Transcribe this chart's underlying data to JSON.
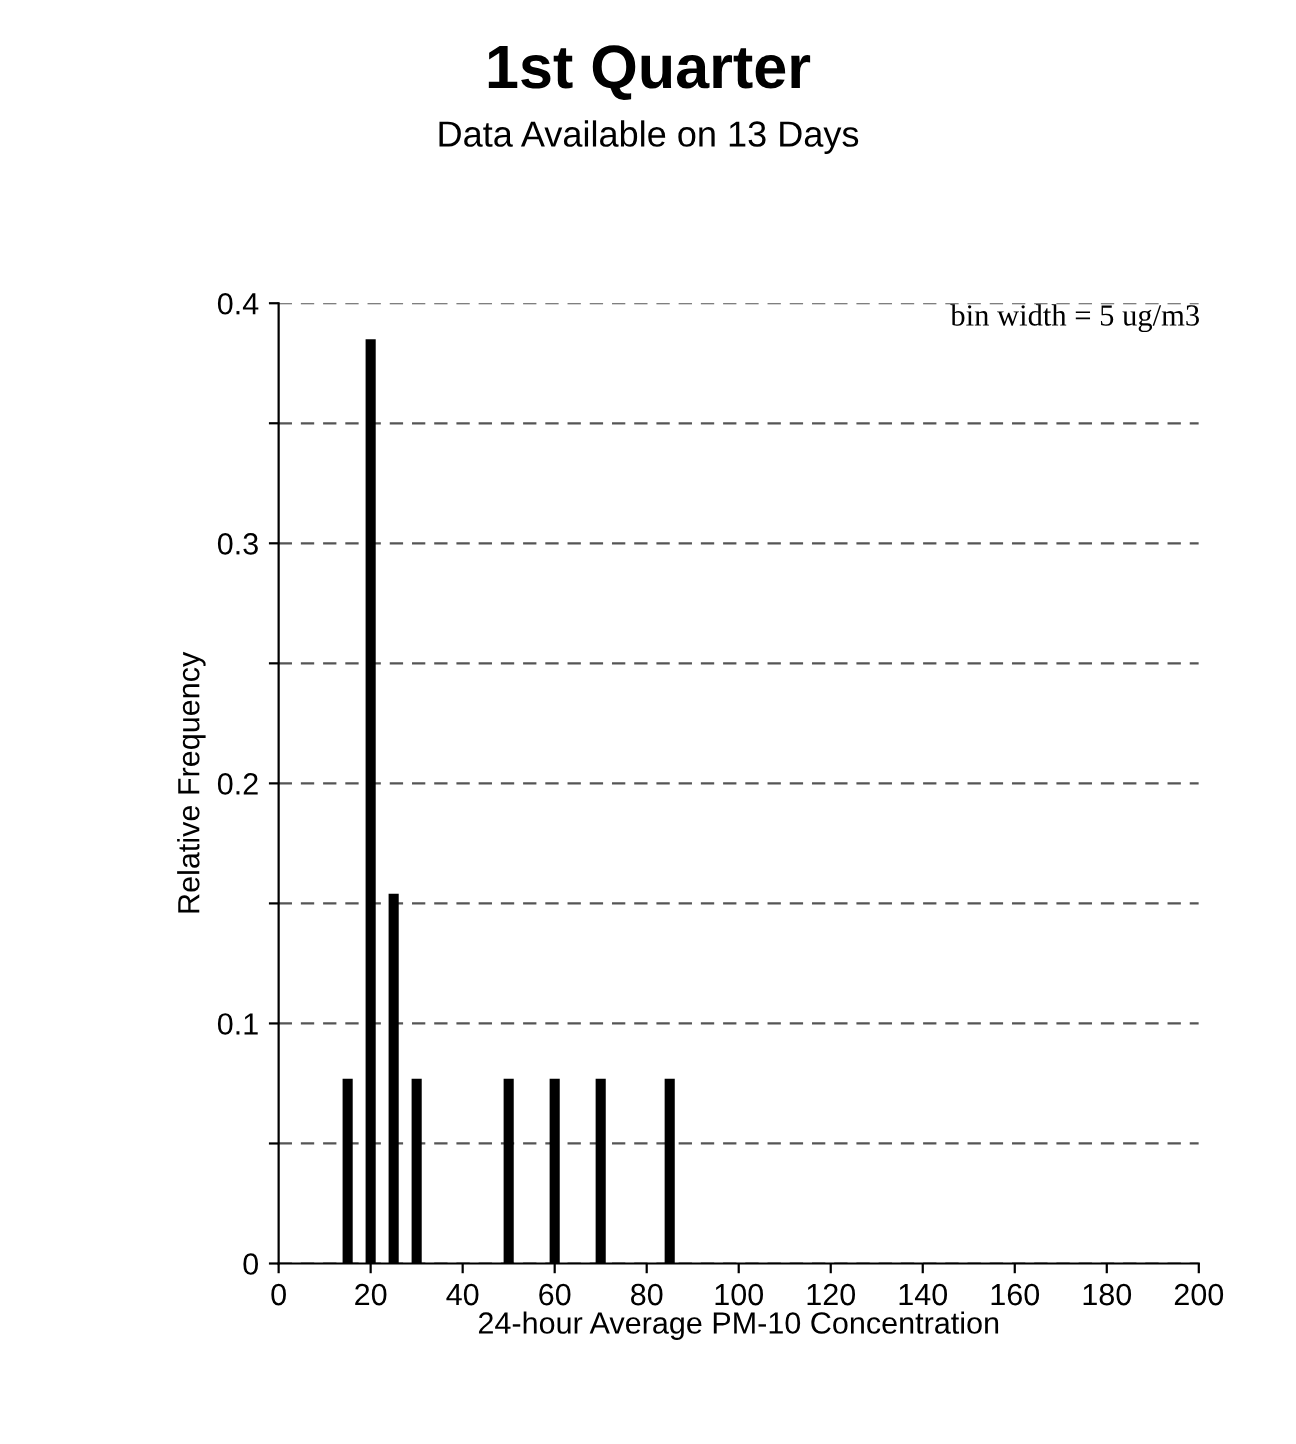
{
  "chart_data": {
    "type": "bar",
    "title": "1st Quarter",
    "subtitle": "Data Available on 13 Days",
    "xlabel": "24-hour Average PM-10 Concentration",
    "ylabel": "Relative Frequency",
    "x": [
      15,
      20,
      25,
      30,
      50,
      60,
      70,
      85
    ],
    "values": [
      0.077,
      0.385,
      0.154,
      0.077,
      0.077,
      0.077,
      0.077,
      0.077
    ],
    "color": "#000000",
    "xlim": [
      0,
      200
    ],
    "xticks": [
      0,
      20,
      40,
      60,
      80,
      100,
      120,
      140,
      160,
      180,
      200
    ],
    "ylim": [
      0,
      0.4
    ],
    "yticks": [
      0,
      {
        "value": 0.05,
        "label": null
      },
      0.1,
      {
        "value": 0.15,
        "label": null
      },
      0.2,
      {
        "value": 0.25,
        "label": null
      },
      0.3,
      {
        "value": 0.35,
        "label": null
      },
      0.4
    ],
    "grid": "y",
    "annotations": [
      "bin width = 5 ug/m3"
    ]
  }
}
